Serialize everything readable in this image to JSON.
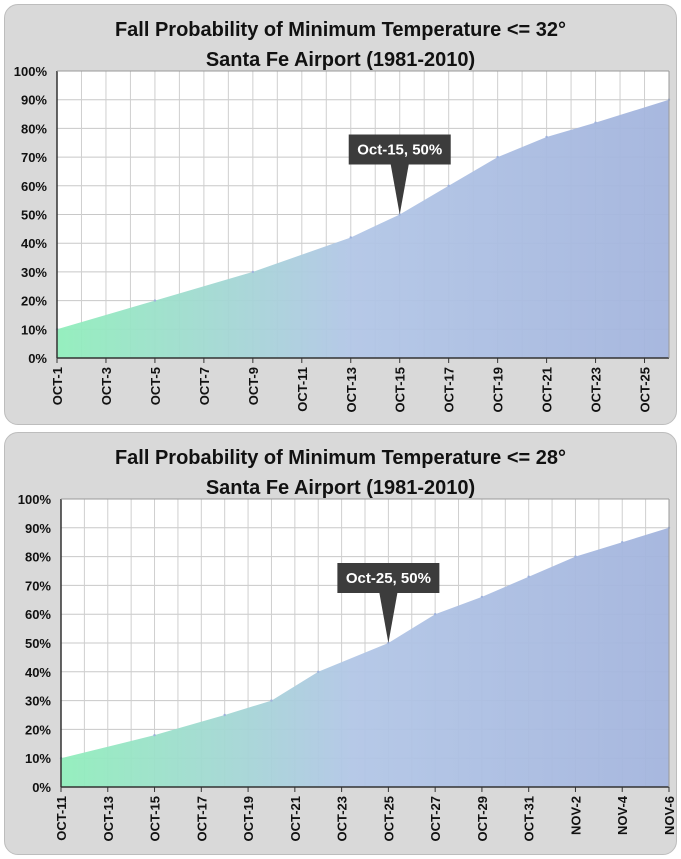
{
  "charts": [
    {
      "title_line1": "Fall Probability of Minimum Temperature <= 32°",
      "title_line2": "Santa Fe Airport (1981-2010)",
      "callout": "Oct-15, 50%",
      "chart_data": {
        "type": "area",
        "title": "Fall Probability of Minimum Temperature <= 32° Santa Fe Airport (1981-2010)",
        "x_tick_labels": [
          "OCT-1",
          "OCT-3",
          "OCT-5",
          "OCT-7",
          "OCT-9",
          "OCT-11",
          "OCT-13",
          "OCT-15",
          "OCT-17",
          "OCT-19",
          "OCT-21",
          "OCT-23",
          "OCT-25"
        ],
        "x_day_range": [
          1,
          26
        ],
        "points": [
          [
            1,
            10
          ],
          [
            5,
            20
          ],
          [
            9,
            30
          ],
          [
            13,
            42
          ],
          [
            15,
            50
          ],
          [
            17,
            60
          ],
          [
            19,
            70
          ],
          [
            21,
            77
          ],
          [
            23,
            82
          ],
          [
            26,
            90
          ]
        ],
        "y_ticks": [
          "0%",
          "10%",
          "20%",
          "30%",
          "40%",
          "50%",
          "60%",
          "70%",
          "80%",
          "90%",
          "100%"
        ],
        "ylim": [
          0,
          100
        ],
        "annotation": {
          "x": 15,
          "y": 50,
          "label": "Oct-15, 50%"
        },
        "grid": true,
        "colors": {
          "start": "#90eebb",
          "mid": "#b2c6e6",
          "end": "#a3b4dd",
          "callout": "#3c3c3c"
        }
      }
    },
    {
      "title_line1": "Fall Probability of Minimum Temperature <= 28°",
      "title_line2": "Santa Fe Airport (1981-2010)",
      "callout": "Oct-25, 50%",
      "chart_data": {
        "type": "area",
        "title": "Fall Probability of Minimum Temperature <= 28° Santa Fe Airport (1981-2010)",
        "x_tick_labels": [
          "OCT-11",
          "OCT-13",
          "OCT-15",
          "OCT-17",
          "OCT-19",
          "OCT-21",
          "OCT-23",
          "OCT-25",
          "OCT-27",
          "OCT-29",
          "OCT-31",
          "NOV-2",
          "NOV-4",
          "NOV-6"
        ],
        "x_day_range": [
          11,
          37
        ],
        "points": [
          [
            11,
            10
          ],
          [
            15,
            18
          ],
          [
            18,
            25
          ],
          [
            20,
            30
          ],
          [
            22,
            40
          ],
          [
            25,
            50
          ],
          [
            27,
            60
          ],
          [
            29,
            66
          ],
          [
            31,
            73
          ],
          [
            33,
            80
          ],
          [
            35,
            85
          ],
          [
            37,
            90
          ]
        ],
        "y_ticks": [
          "0%",
          "10%",
          "20%",
          "30%",
          "40%",
          "50%",
          "60%",
          "70%",
          "80%",
          "90%",
          "100%"
        ],
        "ylim": [
          0,
          100
        ],
        "annotation": {
          "x": 25,
          "y": 50,
          "label": "Oct-25, 50%"
        },
        "grid": true,
        "colors": {
          "start": "#90eebb",
          "mid": "#b2c6e6",
          "end": "#a3b4dd",
          "callout": "#3c3c3c"
        }
      }
    }
  ]
}
